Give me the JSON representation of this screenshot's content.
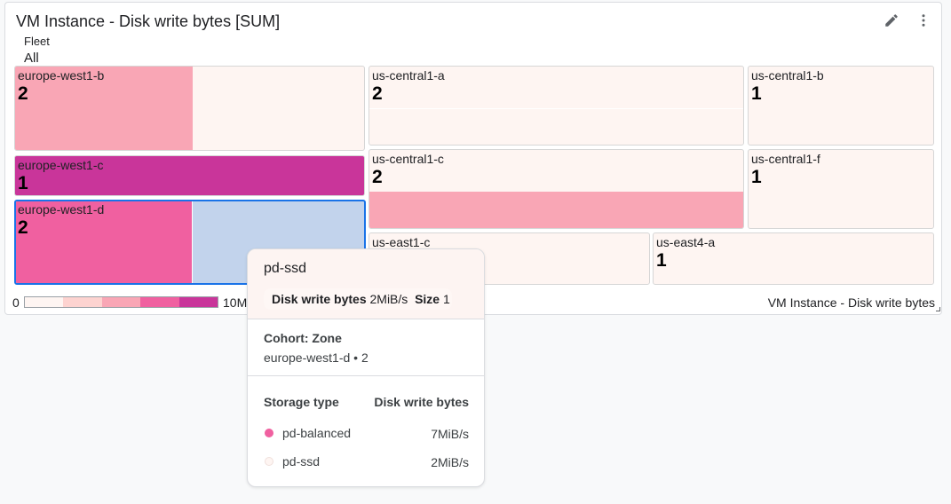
{
  "widget": {
    "title": "VM Instance - Disk write bytes [SUM]",
    "filter_label": "Fleet",
    "filter_value": "All",
    "footer_label": "VM Instance - Disk write bytes",
    "edit_icon": "pencil-icon",
    "menu_icon": "more-vert-icon"
  },
  "tiles": [
    {
      "zone": "europe-west1-b",
      "count": "2"
    },
    {
      "zone": "europe-west1-c",
      "count": "1"
    },
    {
      "zone": "europe-west1-d",
      "count": "2"
    },
    {
      "zone": "us-central1-a",
      "count": "2"
    },
    {
      "zone": "us-central1-b",
      "count": "1"
    },
    {
      "zone": "us-central1-c",
      "count": "2"
    },
    {
      "zone": "us-central1-f",
      "count": "1"
    },
    {
      "zone": "us-east1-c",
      "count": ""
    },
    {
      "zone": "us-east4-a",
      "count": "1"
    }
  ],
  "legend": {
    "min": "0",
    "max": "10M",
    "colors": [
      "#fef5f2",
      "#fdd3d0",
      "#f9a6b5",
      "#f060a0",
      "#c9359a"
    ]
  },
  "colors": {
    "selected_border": "#1a73e8",
    "highlight": "#c2d3ec"
  },
  "tooltip": {
    "title": "pd-ssd",
    "metric_label": "Disk write bytes",
    "metric_value": "2MiB/s",
    "size_label": "Size",
    "size_value": "1",
    "cohort_label": "Cohort: Zone",
    "cohort_value": "europe-west1-d • 2",
    "col1": "Storage type",
    "col2": "Disk write bytes",
    "rows": [
      {
        "name": "pd-balanced",
        "value": "7MiB/s",
        "color": "#f060a0"
      },
      {
        "name": "pd-ssd",
        "value": "2MiB/s",
        "color": "#fef5f2"
      }
    ]
  }
}
